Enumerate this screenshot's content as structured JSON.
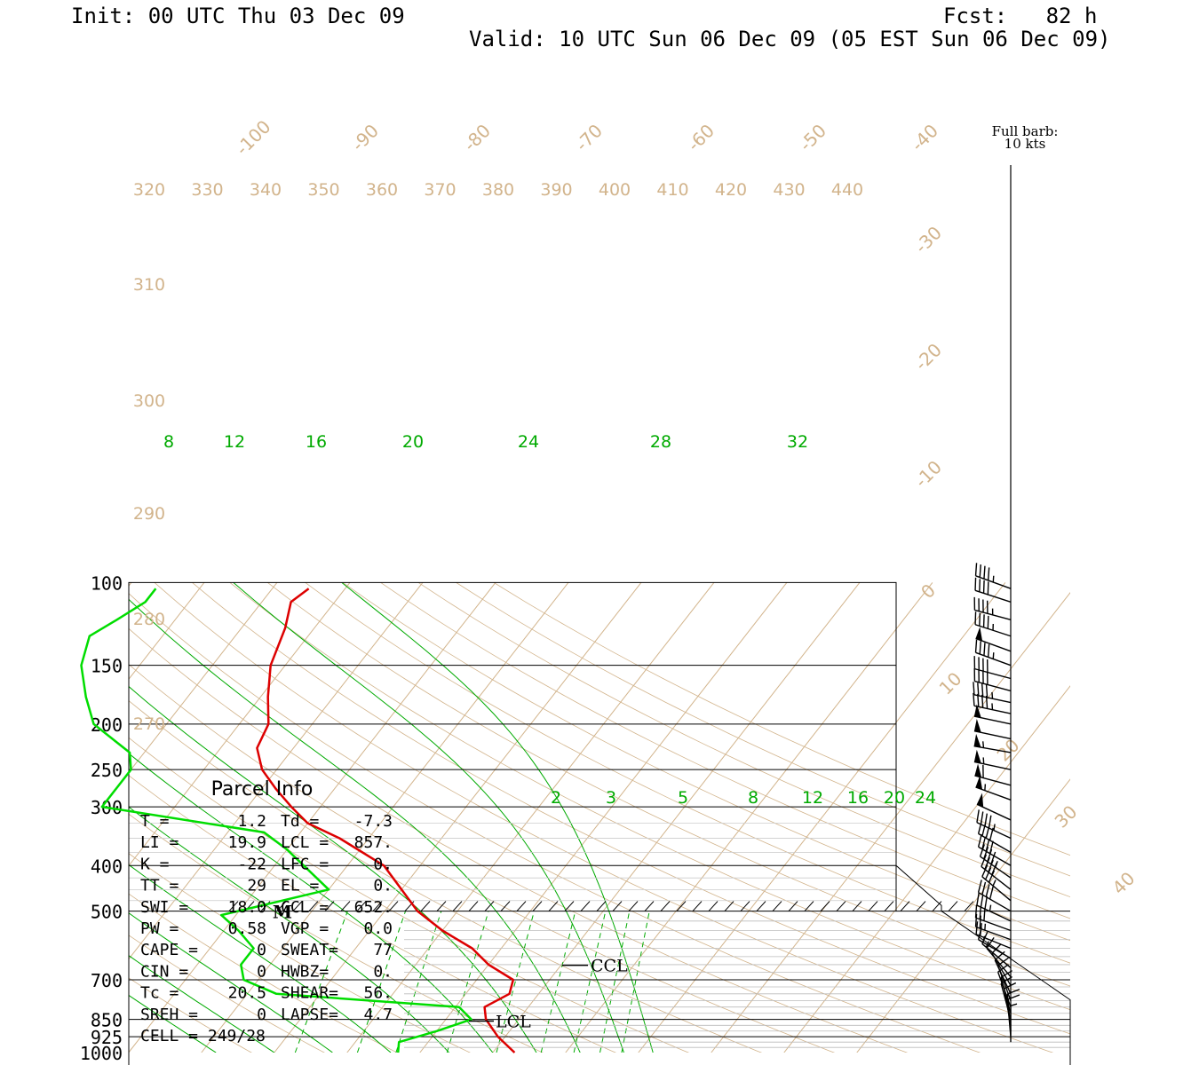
{
  "header": {
    "init": "Init: 00 UTC Thu 03 Dec 09",
    "fcst": "Fcst:   82 h",
    "valid": "Valid: 10 UTC Sun 06 Dec 09 (05 EST Sun 06 Dec 09)"
  },
  "barb_legend": {
    "line1": "Full barb:",
    "line2": "10 kts"
  },
  "colors": {
    "temperature": "#dd0000",
    "dewpoint": "#00dd00",
    "isotherm": "#d2b48c",
    "mixing_ratio": "#00aa00",
    "wind": "#000000"
  },
  "chart_data": {
    "type": "line",
    "title": "",
    "xlabel": "",
    "ylabel": "",
    "y_scale": "log-pressure",
    "pressure_ticks": [
      100,
      150,
      200,
      250,
      300,
      400,
      500,
      700,
      850,
      925,
      1000
    ],
    "isotherm_labels": [
      -100,
      -90,
      -80,
      -70,
      -60,
      -50,
      -40,
      -30,
      -20,
      -10,
      0,
      10,
      20,
      30,
      40
    ],
    "theta_labels": [
      320,
      330,
      340,
      350,
      360,
      370,
      380,
      390,
      400,
      410,
      420,
      430,
      440,
      310,
      300,
      290,
      280,
      270
    ],
    "mixing_ratio_labels_upper": [
      8,
      12,
      16,
      20,
      24,
      28,
      32
    ],
    "mixing_ratio_labels_lower": [
      2,
      3,
      5,
      8,
      12,
      16,
      20,
      24
    ],
    "series": [
      {
        "name": "temperature",
        "points": [
          {
            "p": 1000,
            "t": 13.0
          },
          {
            "p": 925,
            "t": 9.0
          },
          {
            "p": 850,
            "t": 5.5
          },
          {
            "p": 800,
            "t": 4.0
          },
          {
            "p": 750,
            "t": 6.0
          },
          {
            "p": 700,
            "t": 5.0
          },
          {
            "p": 650,
            "t": 0.0
          },
          {
            "p": 600,
            "t": -4.0
          },
          {
            "p": 550,
            "t": -10.0
          },
          {
            "p": 500,
            "t": -15.5
          },
          {
            "p": 450,
            "t": -20.0
          },
          {
            "p": 400,
            "t": -25.0
          },
          {
            "p": 350,
            "t": -34.0
          },
          {
            "p": 325,
            "t": -40.0
          },
          {
            "p": 300,
            "t": -44.0
          },
          {
            "p": 275,
            "t": -48.0
          },
          {
            "p": 250,
            "t": -52.0
          },
          {
            "p": 225,
            "t": -55.0
          },
          {
            "p": 200,
            "t": -56.0
          },
          {
            "p": 175,
            "t": -59.0
          },
          {
            "p": 150,
            "t": -62.0
          },
          {
            "p": 125,
            "t": -64.0
          },
          {
            "p": 110,
            "t": -66.0
          },
          {
            "p": 103,
            "t": -65.0
          }
        ]
      },
      {
        "name": "dewpoint",
        "points": [
          {
            "p": 1000,
            "t": -3.0
          },
          {
            "p": 950,
            "t": -4.0
          },
          {
            "p": 900,
            "t": 0.0
          },
          {
            "p": 850,
            "t": 3.5
          },
          {
            "p": 800,
            "t": 0.5
          },
          {
            "p": 750,
            "t": -26.0
          },
          {
            "p": 700,
            "t": -32.0
          },
          {
            "p": 650,
            "t": -34.0
          },
          {
            "p": 600,
            "t": -34.0
          },
          {
            "p": 550,
            "t": -38.0
          },
          {
            "p": 510,
            "t": -42.0
          },
          {
            "p": 450,
            "t": -30.0
          },
          {
            "p": 400,
            "t": -36.0
          },
          {
            "p": 370,
            "t": -40.0
          },
          {
            "p": 340,
            "t": -45.0
          },
          {
            "p": 300,
            "t": -70.0
          },
          {
            "p": 275,
            "t": -70.0
          },
          {
            "p": 250,
            "t": -70.0
          },
          {
            "p": 230,
            "t": -72.0
          },
          {
            "p": 200,
            "t": -80.0
          },
          {
            "p": 175,
            "t": -84.0
          },
          {
            "p": 150,
            "t": -88.0
          },
          {
            "p": 130,
            "t": -90.0
          },
          {
            "p": 120,
            "t": -88.0
          },
          {
            "p": 110,
            "t": -86.0
          },
          {
            "p": 103,
            "t": -86.0
          }
        ]
      }
    ],
    "winds": [
      {
        "p": 103,
        "dir": 290,
        "spd": 45
      },
      {
        "p": 110,
        "dir": 288,
        "spd": 40
      },
      {
        "p": 120,
        "dir": 285,
        "spd": 45
      },
      {
        "p": 130,
        "dir": 288,
        "spd": 45
      },
      {
        "p": 140,
        "dir": 290,
        "spd": 50
      },
      {
        "p": 150,
        "dir": 290,
        "spd": 45
      },
      {
        "p": 160,
        "dir": 285,
        "spd": 40
      },
      {
        "p": 170,
        "dir": 285,
        "spd": 40
      },
      {
        "p": 180,
        "dir": 282,
        "spd": 45
      },
      {
        "p": 190,
        "dir": 282,
        "spd": 45
      },
      {
        "p": 200,
        "dir": 282,
        "spd": 50
      },
      {
        "p": 215,
        "dir": 282,
        "spd": 50
      },
      {
        "p": 230,
        "dir": 280,
        "spd": 55
      },
      {
        "p": 250,
        "dir": 282,
        "spd": 55
      },
      {
        "p": 270,
        "dir": 285,
        "spd": 60
      },
      {
        "p": 290,
        "dir": 290,
        "spd": 55
      },
      {
        "p": 320,
        "dir": 295,
        "spd": 50
      },
      {
        "p": 350,
        "dir": 295,
        "spd": 45
      },
      {
        "p": 375,
        "dir": 300,
        "spd": 40
      },
      {
        "p": 400,
        "dir": 300,
        "spd": 40
      },
      {
        "p": 425,
        "dir": 305,
        "spd": 45
      },
      {
        "p": 450,
        "dir": 308,
        "spd": 40
      },
      {
        "p": 475,
        "dir": 310,
        "spd": 35
      },
      {
        "p": 500,
        "dir": 300,
        "spd": 40
      },
      {
        "p": 525,
        "dir": 295,
        "spd": 35
      },
      {
        "p": 550,
        "dir": 290,
        "spd": 30
      },
      {
        "p": 575,
        "dir": 290,
        "spd": 25
      },
      {
        "p": 600,
        "dir": 292,
        "spd": 20
      },
      {
        "p": 630,
        "dir": 300,
        "spd": 15
      },
      {
        "p": 660,
        "dir": 310,
        "spd": 15
      },
      {
        "p": 690,
        "dir": 320,
        "spd": 10
      },
      {
        "p": 720,
        "dir": 330,
        "spd": 10
      },
      {
        "p": 750,
        "dir": 335,
        "spd": 10
      },
      {
        "p": 775,
        "dir": 340,
        "spd": 10
      },
      {
        "p": 800,
        "dir": 340,
        "spd": 10
      },
      {
        "p": 825,
        "dir": 345,
        "spd": 10
      },
      {
        "p": 850,
        "dir": 345,
        "spd": 10
      },
      {
        "p": 875,
        "dir": 350,
        "spd": 10
      },
      {
        "p": 900,
        "dir": 355,
        "spd": 10
      },
      {
        "p": 925,
        "dir": 355,
        "spd": 10
      },
      {
        "p": 950,
        "dir": 0,
        "spd": 5
      }
    ],
    "markers": {
      "M_p": 500,
      "CCL": {
        "p": 652,
        "label": "CCL"
      },
      "LCL": {
        "p": 857,
        "label": "LCL"
      }
    },
    "parcel_info": {
      "title": "Parcel Info",
      "rows": [
        [
          "T  =",
          "1.2",
          "Td =",
          "-7.3"
        ],
        [
          "LI =",
          "19.9",
          "LCL =",
          "857."
        ],
        [
          "K  =",
          "-22",
          "LFC =",
          "0."
        ],
        [
          "TT =",
          "29",
          "EL  =",
          "0."
        ],
        [
          "SWI =",
          "18.0",
          "CCL =",
          "652."
        ],
        [
          "PW  =",
          "0.58",
          "VGP =",
          "0.0"
        ],
        [
          "CAPE =",
          "0",
          "SWEAT=",
          "77"
        ],
        [
          "CIN  =",
          "0",
          "HWBZ=",
          "0."
        ],
        [
          "Tc =",
          "20.5",
          "SHEAR=",
          "56."
        ],
        [
          "SREH =",
          "0",
          "LAPSE=",
          "4.7"
        ]
      ],
      "cell": "CELL = 249/28"
    }
  }
}
